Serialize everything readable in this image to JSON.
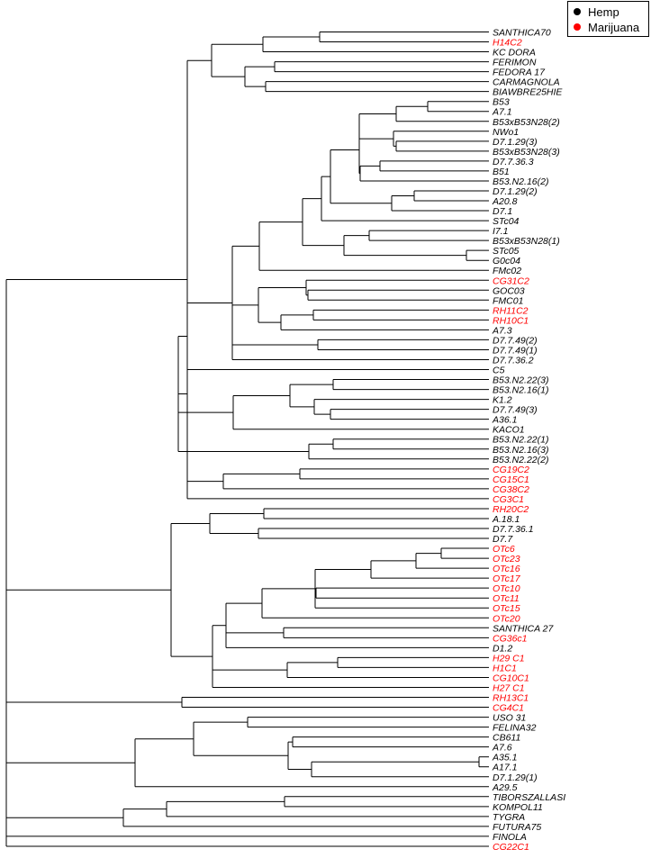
{
  "legend": {
    "items": [
      {
        "label": "Hemp",
        "color": "#000000",
        "group": "hemp"
      },
      {
        "label": "Marijuana",
        "color": "#ff0000",
        "group": "marijuana"
      }
    ]
  },
  "chart_data": {
    "type": "dendrogram",
    "orientation": "left-to-right, leaves on the right",
    "colors": {
      "hemp": "#000000",
      "marijuana": "#ff0000"
    },
    "leaves": [
      {
        "label": "SANTHICA70",
        "group": "hemp"
      },
      {
        "label": "H14C2",
        "group": "marijuana"
      },
      {
        "label": "KC DORA",
        "group": "hemp"
      },
      {
        "label": "FERIMON",
        "group": "hemp"
      },
      {
        "label": "FEDORA 17",
        "group": "hemp"
      },
      {
        "label": "CARMAGNOLA",
        "group": "hemp"
      },
      {
        "label": "BIAWBRE25HIE",
        "group": "hemp"
      },
      {
        "label": "B53",
        "group": "hemp"
      },
      {
        "label": "A7.1",
        "group": "hemp"
      },
      {
        "label": "B53xB53N28(2)",
        "group": "hemp"
      },
      {
        "label": "NWo1",
        "group": "hemp"
      },
      {
        "label": "D7.1.29(3)",
        "group": "hemp"
      },
      {
        "label": "B53xB53N28(3)",
        "group": "hemp"
      },
      {
        "label": "D7.7.36.3",
        "group": "hemp"
      },
      {
        "label": "B51",
        "group": "hemp"
      },
      {
        "label": "B53.N2.16(2)",
        "group": "hemp"
      },
      {
        "label": "D7.1.29(2)",
        "group": "hemp"
      },
      {
        "label": "A20.8",
        "group": "hemp"
      },
      {
        "label": "D7.1",
        "group": "hemp"
      },
      {
        "label": "STc04",
        "group": "hemp"
      },
      {
        "label": "I7.1",
        "group": "hemp"
      },
      {
        "label": "B53xB53N28(1)",
        "group": "hemp"
      },
      {
        "label": "STc05",
        "group": "hemp"
      },
      {
        "label": "G0c04",
        "group": "hemp"
      },
      {
        "label": "FMc02",
        "group": "hemp"
      },
      {
        "label": "CG31C2",
        "group": "marijuana"
      },
      {
        "label": "GOC03",
        "group": "hemp"
      },
      {
        "label": "FMC01",
        "group": "hemp"
      },
      {
        "label": "RH11C2",
        "group": "marijuana"
      },
      {
        "label": "RH10C1",
        "group": "marijuana"
      },
      {
        "label": "A7.3",
        "group": "hemp"
      },
      {
        "label": "D7.7.49(2)",
        "group": "hemp"
      },
      {
        "label": "D7.7.49(1)",
        "group": "hemp"
      },
      {
        "label": "D7.7.36.2",
        "group": "hemp"
      },
      {
        "label": "C5",
        "group": "hemp"
      },
      {
        "label": "B53.N2.22(3)",
        "group": "hemp"
      },
      {
        "label": "B53.N2.16(1)",
        "group": "hemp"
      },
      {
        "label": "K1.2",
        "group": "hemp"
      },
      {
        "label": "D7.7.49(3)",
        "group": "hemp"
      },
      {
        "label": "A36.1",
        "group": "hemp"
      },
      {
        "label": "KACO1",
        "group": "hemp"
      },
      {
        "label": "B53.N2.22(1)",
        "group": "hemp"
      },
      {
        "label": "B53.N2.16(3)",
        "group": "hemp"
      },
      {
        "label": "B53.N2.22(2)",
        "group": "hemp"
      },
      {
        "label": "CG19C2",
        "group": "marijuana"
      },
      {
        "label": "CG15C1",
        "group": "marijuana"
      },
      {
        "label": "CG38C2",
        "group": "marijuana"
      },
      {
        "label": "CG3C1",
        "group": "marijuana"
      },
      {
        "label": "RH20C2",
        "group": "marijuana"
      },
      {
        "label": "A.18.1",
        "group": "hemp"
      },
      {
        "label": "D7.7.36.1",
        "group": "hemp"
      },
      {
        "label": "D7.7",
        "group": "hemp"
      },
      {
        "label": "OTc6",
        "group": "marijuana"
      },
      {
        "label": "OTc23",
        "group": "marijuana"
      },
      {
        "label": "OTc16",
        "group": "marijuana"
      },
      {
        "label": "OTc17",
        "group": "marijuana"
      },
      {
        "label": "OTc10",
        "group": "marijuana"
      },
      {
        "label": "OTc11",
        "group": "marijuana"
      },
      {
        "label": "OTc15",
        "group": "marijuana"
      },
      {
        "label": "OTc20",
        "group": "marijuana"
      },
      {
        "label": "SANTHICA 27",
        "group": "hemp"
      },
      {
        "label": "CG36c1",
        "group": "marijuana"
      },
      {
        "label": "D1.2",
        "group": "hemp"
      },
      {
        "label": "H29 C1",
        "group": "marijuana"
      },
      {
        "label": "H1C1",
        "group": "marijuana"
      },
      {
        "label": "CG10C1",
        "group": "marijuana"
      },
      {
        "label": "H27 C1",
        "group": "marijuana"
      },
      {
        "label": "RH13C1",
        "group": "marijuana"
      },
      {
        "label": "CG4C1",
        "group": "marijuana"
      },
      {
        "label": "USO 31",
        "group": "hemp"
      },
      {
        "label": "FELINA32",
        "group": "hemp"
      },
      {
        "label": "CB611",
        "group": "hemp"
      },
      {
        "label": "A7.6",
        "group": "hemp"
      },
      {
        "label": "A35.1",
        "group": "hemp"
      },
      {
        "label": "A17.1",
        "group": "hemp"
      },
      {
        "label": "D7.1.29(1)",
        "group": "hemp"
      },
      {
        "label": "A29.5",
        "group": "hemp"
      },
      {
        "label": "TIBORSZALLASI",
        "group": "hemp"
      },
      {
        "label": "KOMPOL11",
        "group": "hemp"
      },
      {
        "label": "TYGRA",
        "group": "hemp"
      },
      {
        "label": "FUTURA75",
        "group": "hemp"
      },
      {
        "label": "FINOLA",
        "group": "hemp"
      },
      {
        "label": "CG22C1",
        "group": "marijuana"
      }
    ]
  }
}
